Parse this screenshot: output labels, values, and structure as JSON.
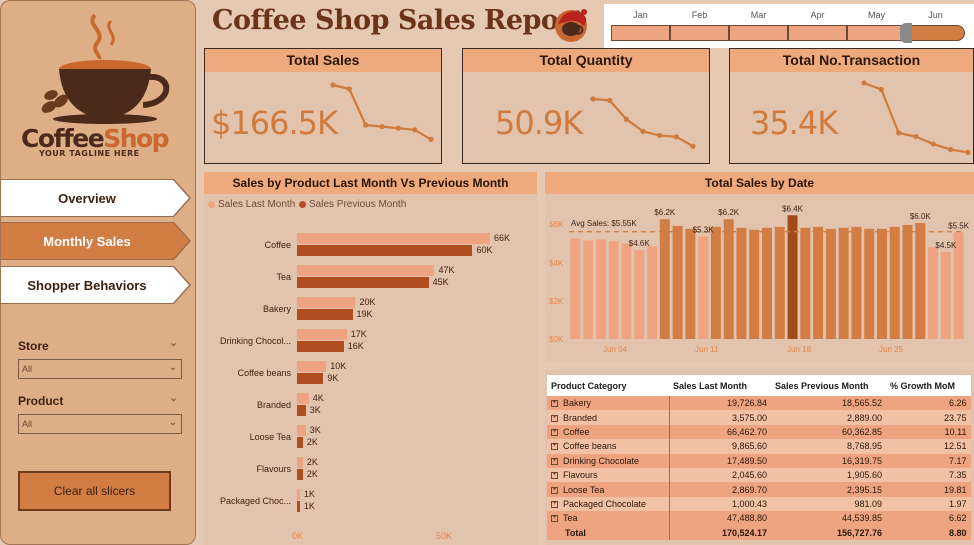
{
  "logo": {
    "brand_part1": "Coffee",
    "brand_part2": "Shop",
    "tagline": "YOUR TAGLINE HERE"
  },
  "nav": [
    {
      "label": "Overview",
      "active": false
    },
    {
      "label": "Monthly Sales",
      "active": true
    },
    {
      "label": "Shopper Behaviors",
      "active": false
    }
  ],
  "slicers": {
    "store": {
      "label": "Store",
      "value": "All"
    },
    "product": {
      "label": "Product",
      "value": "All"
    },
    "clear_label": "Clear all slicers"
  },
  "header": {
    "title": "Coffee Shop Sales Report"
  },
  "months": {
    "labels": [
      "Jan",
      "Feb",
      "Mar",
      "Apr",
      "May",
      "Jun"
    ],
    "selected": "Jun"
  },
  "kpis": [
    {
      "title": "Total Sales",
      "value": "$166.5K"
    },
    {
      "title": "Total Quantity",
      "value": "50.9K"
    },
    {
      "title": "Total No.Transaction",
      "value": "35.4K"
    }
  ],
  "bar_panel": {
    "title": "Sales by Product Last Month Vs Previous Month",
    "legend_last": "Sales Last Month",
    "legend_prev": "Sales Previous Month",
    "axis_ticks": [
      "0K",
      "50K"
    ]
  },
  "line_panel": {
    "title": "Total Sales by Date",
    "avg_label": "Avg Sales: $5.55K",
    "y_ticks": [
      "$6K",
      "$4K",
      "$2K",
      "$0K"
    ],
    "x_ticks": [
      "Jun 04",
      "Jun 11",
      "Jun 18",
      "Jun 25"
    ]
  },
  "colors": {
    "accent": "#d27d43",
    "light": "#eea481",
    "dark": "#b04e22",
    "panel": "#e2c4ae",
    "head": "#eea97c"
  },
  "chart_data": [
    {
      "type": "bar",
      "title": "Sales by Product Last Month Vs Previous Month",
      "categories": [
        "Coffee",
        "Tea",
        "Bakery",
        "Drinking Chocol...",
        "Coffee beans",
        "Branded",
        "Loose Tea",
        "Flavours",
        "Packaged Choc..."
      ],
      "series": [
        {
          "name": "Sales Last Month",
          "values": [
            66,
            47,
            20,
            17,
            10,
            4,
            3,
            2,
            1
          ],
          "labels": [
            "66K",
            "47K",
            "20K",
            "17K",
            "10K",
            "4K",
            "3K",
            "2K",
            "1K"
          ]
        },
        {
          "name": "Sales Previous Month",
          "values": [
            60,
            45,
            19,
            16,
            9,
            3,
            2,
            2,
            1
          ],
          "labels": [
            "60K",
            "45K",
            "19K",
            "16K",
            "9K",
            "3K",
            "2K",
            "2K",
            "1K"
          ]
        }
      ],
      "xlim": [
        0,
        70
      ]
    },
    {
      "type": "bar",
      "title": "Total Sales by Date",
      "ylim": [
        0,
        7000
      ],
      "avg": 5550,
      "values": [
        5200,
        5100,
        5150,
        5050,
        4950,
        4600,
        4800,
        6200,
        5850,
        5700,
        5300,
        5800,
        6200,
        5750,
        5650,
        5750,
        5800,
        6400,
        5750,
        5800,
        5700,
        5750,
        5800,
        5700,
        5700,
        5800,
        5900,
        6000,
        4750,
        4500,
        5500
      ],
      "highlight_index": 17,
      "data_labels": [
        {
          "index": 5,
          "text": "$4.6K"
        },
        {
          "index": 7,
          "text": "$6.2K"
        },
        {
          "index": 10,
          "text": "$5.3K"
        },
        {
          "index": 12,
          "text": "$6.2K"
        },
        {
          "index": 17,
          "text": "$6.4K"
        },
        {
          "index": 27,
          "text": "$6.0K"
        },
        {
          "index": 29,
          "text": "$4.5K"
        },
        {
          "index": 30,
          "text": "$5.5K"
        }
      ]
    },
    {
      "type": "line",
      "title": "Total Sales",
      "values": [
        8,
        7.5,
        3,
        2.8,
        2.6,
        2.4,
        1.2
      ]
    },
    {
      "type": "line",
      "title": "Total Quantity",
      "values": [
        8,
        7.8,
        5,
        3.2,
        2.6,
        2.4,
        1.0
      ]
    },
    {
      "type": "line",
      "title": "Total No.Transaction",
      "values": [
        8,
        7.3,
        2.6,
        2.2,
        1.4,
        0.8,
        0.5
      ]
    },
    {
      "type": "table",
      "columns": [
        "Product Category",
        "Sales Last Month",
        "Sales Previous Month",
        "% Growth MoM"
      ],
      "rows": [
        [
          "Bakery",
          "19,726.84",
          "18,565.52",
          "6.26"
        ],
        [
          "Branded",
          "3,575.00",
          "2,889.00",
          "23.75"
        ],
        [
          "Coffee",
          "66,462.70",
          "60,362.85",
          "10.11"
        ],
        [
          "Coffee beans",
          "9,865.60",
          "8,768.95",
          "12.51"
        ],
        [
          "Drinking Chocolate",
          "17,489.50",
          "16,319.75",
          "7.17"
        ],
        [
          "Flavours",
          "2,045.60",
          "1,905.60",
          "7.35"
        ],
        [
          "Loose Tea",
          "2,869.70",
          "2,395.15",
          "19.81"
        ],
        [
          "Packaged Chocolate",
          "1,000.43",
          "981.09",
          "1.97"
        ],
        [
          "Tea",
          "47,488.80",
          "44,539.85",
          "6.62"
        ]
      ],
      "total": [
        "Total",
        "170,524.17",
        "156,727.76",
        "8.80"
      ]
    }
  ]
}
